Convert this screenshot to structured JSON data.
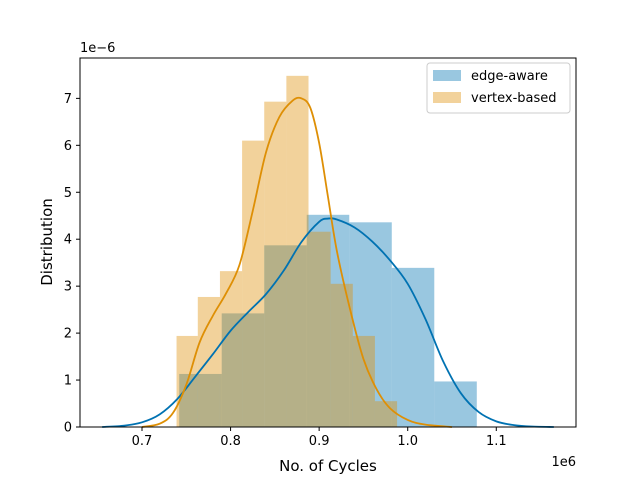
{
  "chart_data": {
    "type": "histogram",
    "xlabel": "No. of Cycles",
    "ylabel": "Distribution",
    "x_offset_label": "1e6",
    "y_offset_label": "1e−6",
    "xlim": [
      0.63,
      1.19
    ],
    "ylim": [
      0,
      7.86
    ],
    "x_ticks": [
      0.7,
      0.8,
      0.9,
      1.0,
      1.1
    ],
    "x_tick_labels": [
      "0.7",
      "0.8",
      "0.9",
      "1.0",
      "1.1"
    ],
    "y_ticks": [
      0,
      1,
      2,
      3,
      4,
      5,
      6,
      7
    ],
    "y_tick_labels": [
      "0",
      "1",
      "2",
      "3",
      "4",
      "5",
      "6",
      "7"
    ],
    "legend_position": "top-right",
    "series": [
      {
        "name": "edge-aware",
        "bar_color": "#0072b2",
        "bar_opacity": 0.4,
        "kde_color": "#0072b2",
        "bins": [
          {
            "x0": 0.742,
            "x1": 0.79,
            "y": 1.13
          },
          {
            "x0": 0.79,
            "x1": 0.838,
            "y": 2.42
          },
          {
            "x0": 0.838,
            "x1": 0.886,
            "y": 3.87
          },
          {
            "x0": 0.886,
            "x1": 0.934,
            "y": 4.52
          },
          {
            "x0": 0.934,
            "x1": 0.982,
            "y": 4.36
          },
          {
            "x0": 0.982,
            "x1": 1.03,
            "y": 3.39
          },
          {
            "x0": 1.03,
            "x1": 1.078,
            "y": 0.97
          }
        ],
        "kde": [
          [
            0.655,
            0.0
          ],
          [
            0.68,
            0.03
          ],
          [
            0.7,
            0.1
          ],
          [
            0.72,
            0.27
          ],
          [
            0.74,
            0.6
          ],
          [
            0.76,
            1.07
          ],
          [
            0.78,
            1.55
          ],
          [
            0.8,
            2.05
          ],
          [
            0.82,
            2.45
          ],
          [
            0.84,
            2.83
          ],
          [
            0.86,
            3.33
          ],
          [
            0.88,
            3.94
          ],
          [
            0.9,
            4.37
          ],
          [
            0.91,
            4.44
          ],
          [
            0.92,
            4.42
          ],
          [
            0.94,
            4.25
          ],
          [
            0.96,
            3.95
          ],
          [
            0.98,
            3.55
          ],
          [
            1.0,
            3.05
          ],
          [
            1.02,
            2.3
          ],
          [
            1.04,
            1.4
          ],
          [
            1.06,
            0.72
          ],
          [
            1.08,
            0.32
          ],
          [
            1.1,
            0.12
          ],
          [
            1.12,
            0.04
          ],
          [
            1.14,
            0.01
          ],
          [
            1.165,
            0.0
          ]
        ]
      },
      {
        "name": "vertex-based",
        "bar_color": "#de8f05",
        "bar_opacity": 0.4,
        "kde_color": "#de8f05",
        "bins": [
          {
            "x0": 0.739,
            "x1": 0.763,
            "y": 1.94
          },
          {
            "x0": 0.763,
            "x1": 0.788,
            "y": 2.77
          },
          {
            "x0": 0.788,
            "x1": 0.813,
            "y": 3.32
          },
          {
            "x0": 0.813,
            "x1": 0.838,
            "y": 6.1
          },
          {
            "x0": 0.838,
            "x1": 0.863,
            "y": 6.93
          },
          {
            "x0": 0.863,
            "x1": 0.888,
            "y": 7.48
          },
          {
            "x0": 0.888,
            "x1": 0.913,
            "y": 4.16
          },
          {
            "x0": 0.913,
            "x1": 0.938,
            "y": 3.05
          },
          {
            "x0": 0.938,
            "x1": 0.963,
            "y": 1.94
          },
          {
            "x0": 0.963,
            "x1": 0.988,
            "y": 0.55
          }
        ],
        "kde": [
          [
            0.7,
            0.0
          ],
          [
            0.72,
            0.07
          ],
          [
            0.735,
            0.3
          ],
          [
            0.75,
            0.9
          ],
          [
            0.765,
            1.8
          ],
          [
            0.78,
            2.37
          ],
          [
            0.795,
            2.85
          ],
          [
            0.81,
            3.45
          ],
          [
            0.825,
            4.6
          ],
          [
            0.84,
            5.85
          ],
          [
            0.855,
            6.6
          ],
          [
            0.87,
            6.95
          ],
          [
            0.88,
            7.0
          ],
          [
            0.89,
            6.8
          ],
          [
            0.9,
            6.05
          ],
          [
            0.91,
            4.9
          ],
          [
            0.92,
            3.75
          ],
          [
            0.935,
            2.5
          ],
          [
            0.95,
            1.45
          ],
          [
            0.965,
            0.8
          ],
          [
            0.98,
            0.4
          ],
          [
            1.0,
            0.15
          ],
          [
            1.02,
            0.05
          ],
          [
            1.05,
            0.0
          ]
        ]
      }
    ]
  }
}
